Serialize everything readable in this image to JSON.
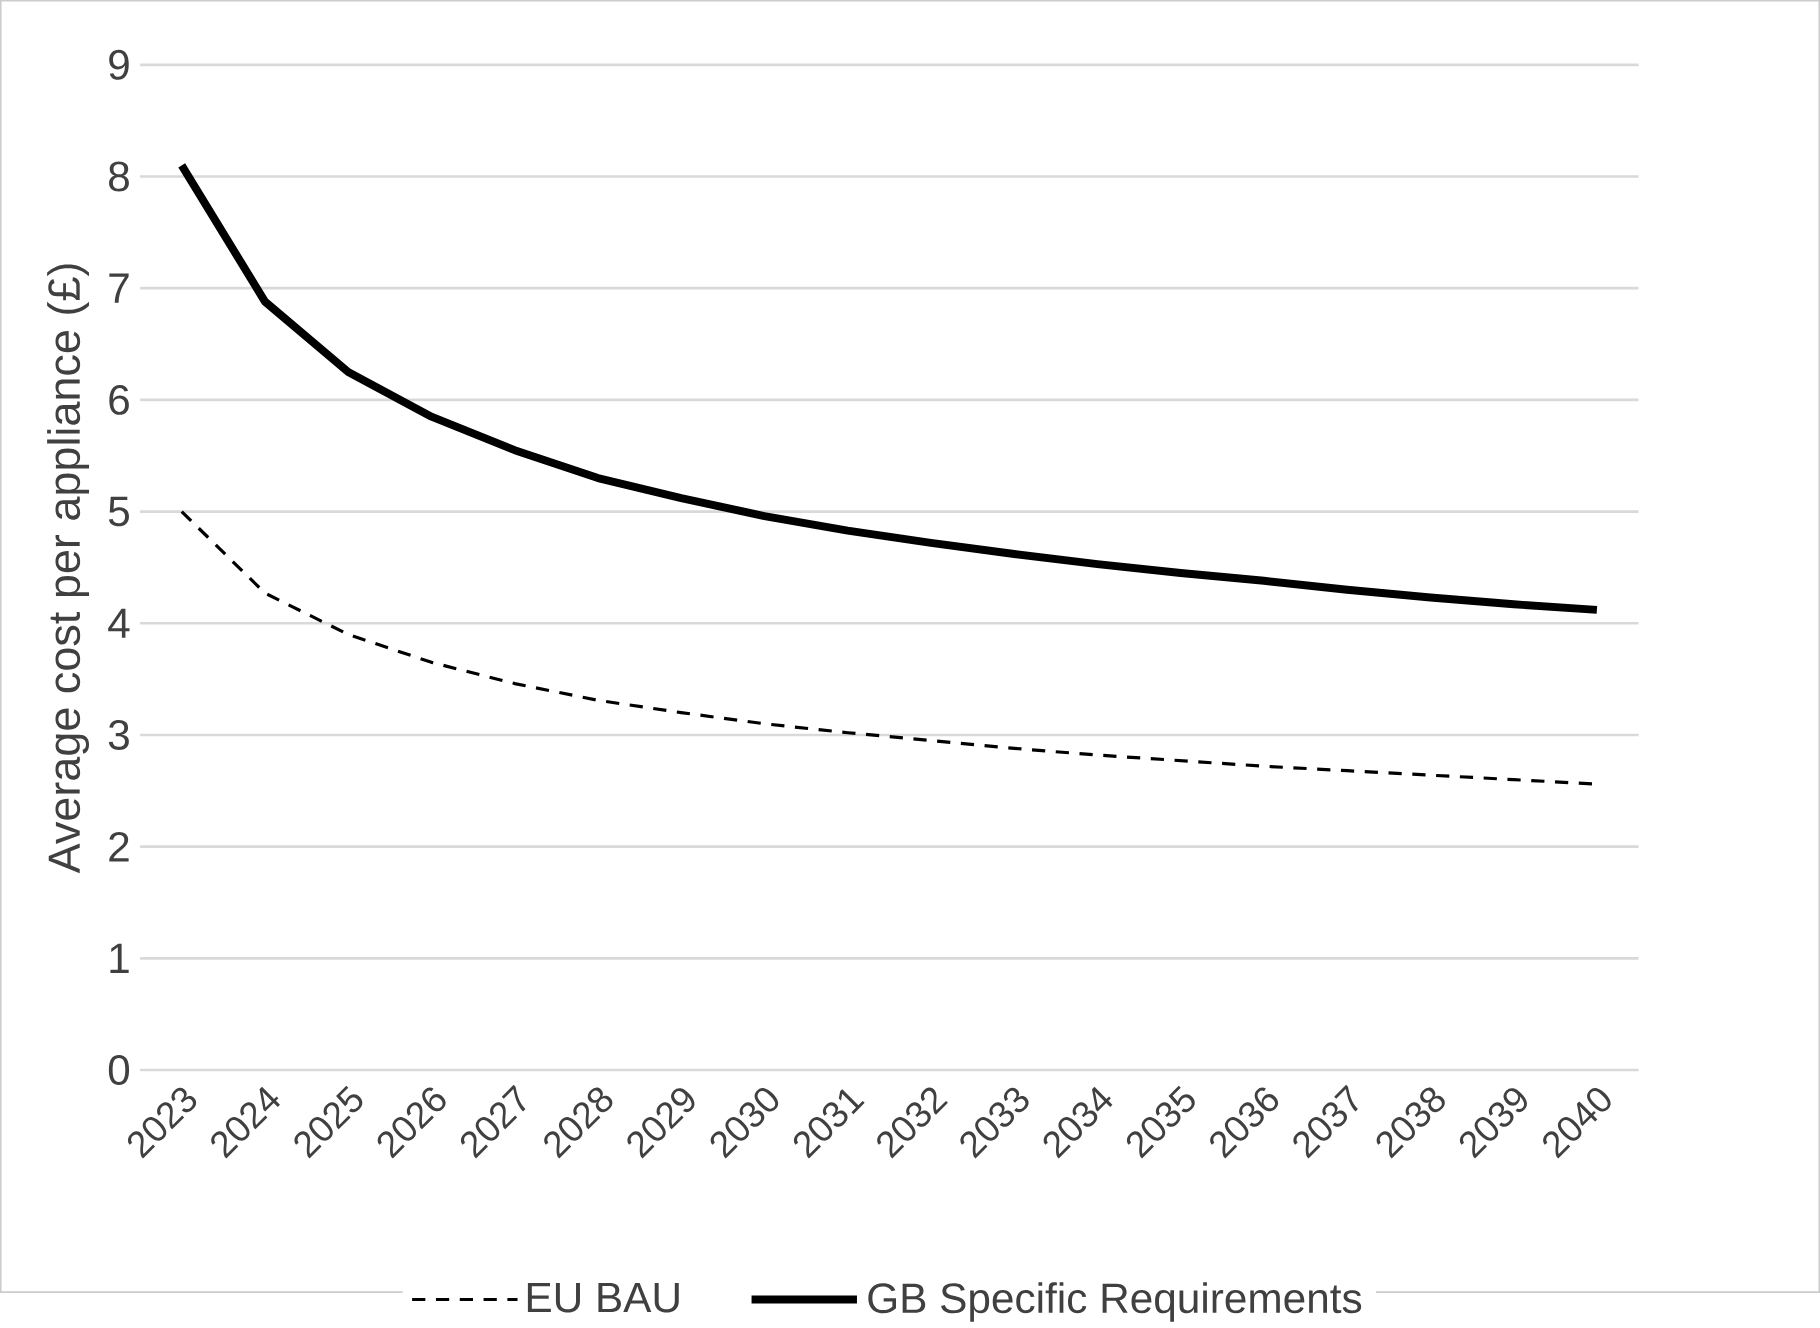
{
  "chart_data": {
    "type": "line",
    "ylabel": "Average cost per appliance (£)",
    "categories": [
      "2023",
      "2024",
      "2025",
      "2026",
      "2027",
      "2028",
      "2029",
      "2030",
      "2031",
      "2032",
      "2033",
      "2034",
      "2035",
      "2036",
      "2037",
      "2038",
      "2039",
      "2040"
    ],
    "series": [
      {
        "name": "EU BAU",
        "color": "#000000",
        "line_style": "dashed",
        "values": [
          5.0,
          4.27,
          3.9,
          3.65,
          3.46,
          3.31,
          3.2,
          3.1,
          3.02,
          2.95,
          2.88,
          2.82,
          2.77,
          2.72,
          2.68,
          2.64,
          2.6,
          2.56
        ]
      },
      {
        "name": "GB Specific Requirements",
        "color": "#000000",
        "line_style": "solid",
        "values": [
          8.1,
          6.88,
          6.25,
          5.85,
          5.55,
          5.3,
          5.12,
          4.96,
          4.83,
          4.72,
          4.62,
          4.53,
          4.45,
          4.38,
          4.3,
          4.23,
          4.17,
          4.12
        ]
      }
    ],
    "ylim": [
      0,
      9
    ],
    "yticks": [
      0,
      1,
      2,
      3,
      4,
      5,
      6,
      7,
      8,
      9
    ],
    "grid": "y",
    "legend": "bottom",
    "marker": "none"
  }
}
